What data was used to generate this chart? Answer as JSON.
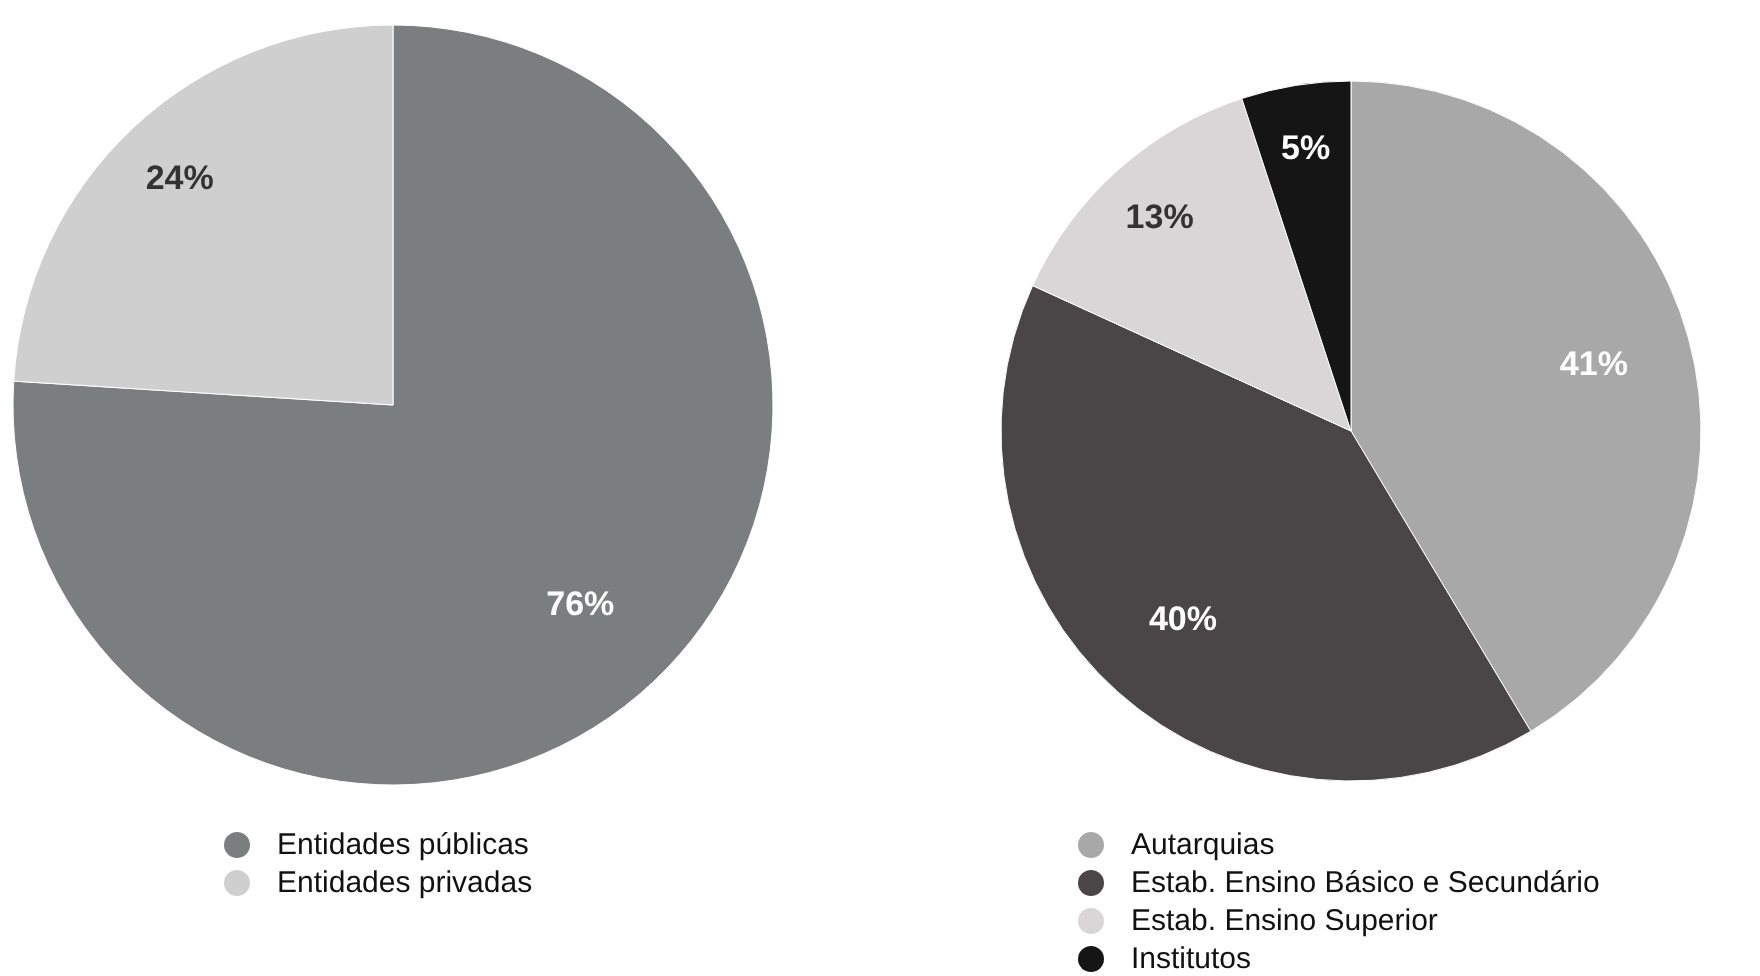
{
  "chart_data": [
    {
      "type": "pie",
      "categories": [
        "Entidades públicas",
        "Entidades privadas"
      ],
      "values": [
        76,
        24
      ],
      "value_labels": [
        "76%",
        "24%"
      ],
      "colors": [
        "#7b7e7e",
        "#cfcfcf"
      ],
      "legend": "bottom"
    },
    {
      "type": "pie",
      "categories": [
        "Autarquias",
        "Estab. Ensino Básico e Secundário",
        "Estab. Ensino Superior",
        "Institutos"
      ],
      "values": [
        41,
        40,
        13,
        5
      ],
      "value_labels": [
        "41%",
        "40%",
        "13%",
        "5%"
      ],
      "colors": [
        "#a9a8a8",
        "#4a4647",
        "#d8d6d6",
        "#151515"
      ],
      "legend": "bottom"
    }
  ]
}
